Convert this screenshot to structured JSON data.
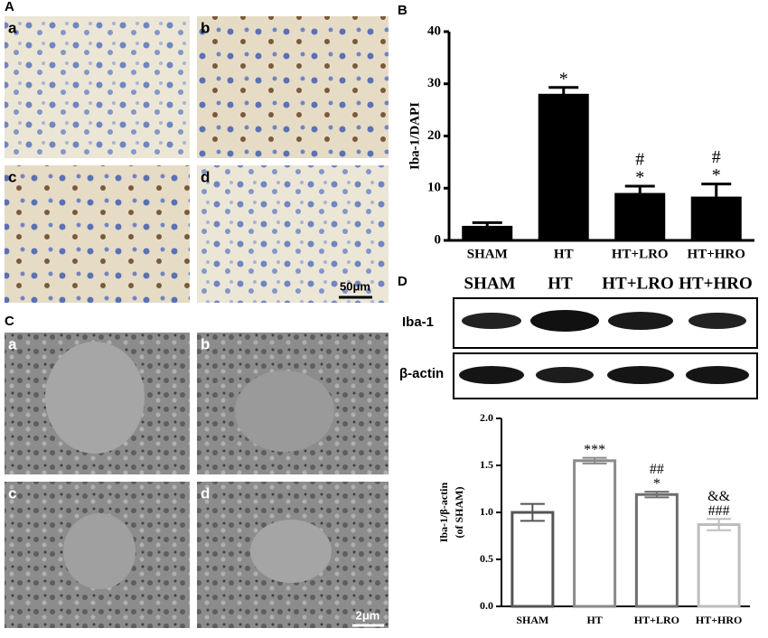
{
  "panels": {
    "A": {
      "label": "A",
      "images": [
        "a",
        "b",
        "c",
        "d"
      ],
      "scale_bar": "50μm"
    },
    "C": {
      "label": "C",
      "images": [
        "a",
        "b",
        "c",
        "d"
      ],
      "scale_bar": "2μm"
    }
  },
  "blot": {
    "label": "D",
    "columns": [
      "SHAM",
      "HT",
      "HT+LRO",
      "HT+HRO"
    ],
    "rows": [
      "Iba-1",
      "β-actin"
    ]
  },
  "chart_data": [
    {
      "type": "bar",
      "panel": "B",
      "ylabel": [
        "Iba-1/DAPI"
      ],
      "categories": [
        "SHAM",
        "HT",
        "HT+LRO",
        "HT+HRO"
      ],
      "values": [
        2.7,
        28,
        9,
        8.3
      ],
      "errors": [
        0.7,
        1.3,
        1.4,
        2.5
      ],
      "bar_labels": [
        null,
        [
          "*"
        ],
        [
          "#",
          "*"
        ],
        [
          "#",
          "*"
        ]
      ],
      "colors": [
        "#000000",
        "#000000",
        "#000000",
        "#000000"
      ],
      "filled": true,
      "ylim": [
        0,
        40
      ],
      "yticks": [
        0,
        10,
        20,
        30,
        40
      ]
    },
    {
      "type": "bar",
      "ylabel": [
        "Iba-1/β-actin",
        "(of SHAM)"
      ],
      "categories": [
        "SHAM",
        "HT",
        "HT+LRO",
        "HT+HRO"
      ],
      "values": [
        1.0,
        1.55,
        1.19,
        0.87
      ],
      "errors": [
        0.09,
        0.03,
        0.03,
        0.06
      ],
      "bar_labels": [
        null,
        [
          "***"
        ],
        [
          "##",
          "*"
        ],
        [
          "&&",
          "###"
        ]
      ],
      "colors": [
        "#555555",
        "#8a8a8a",
        "#6f6f6f",
        "#bdbdbd"
      ],
      "filled": false,
      "ylim": [
        0,
        2
      ],
      "yticks": [
        {
          "value": 0,
          "label": "0.0"
        },
        0.5,
        {
          "value": 1,
          "label": "1.0"
        },
        1.5,
        {
          "value": 2,
          "label": "2.0"
        }
      ]
    }
  ]
}
